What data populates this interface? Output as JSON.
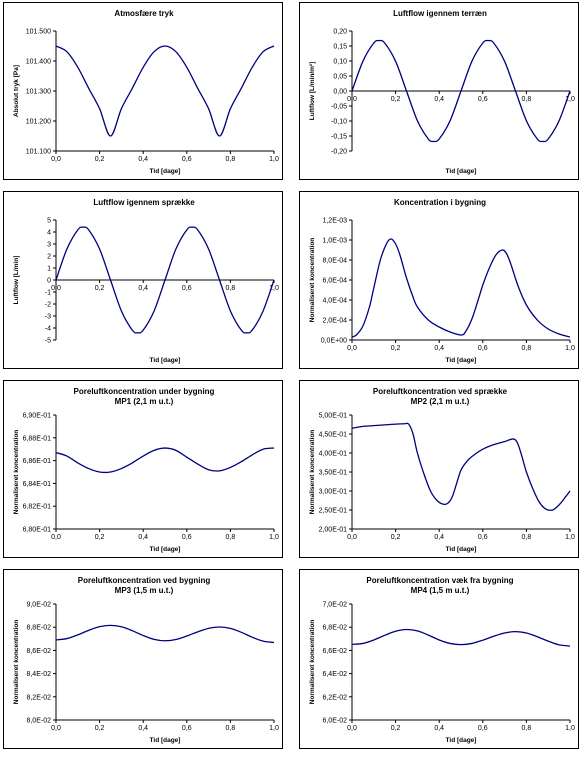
{
  "chart_data": [
    {
      "id": "p1",
      "type": "line",
      "title": "Atmosfære tryk",
      "subtitle": "",
      "xlabel": "Tid [dage]",
      "ylabel": "Absolut tryk [Pa]",
      "xlim": [
        0,
        1
      ],
      "ylim": [
        101100,
        101500
      ],
      "xticks": [
        "0,0",
        "0,2",
        "0,4",
        "0,6",
        "0,8",
        "1,0"
      ],
      "yticks": [
        "101.100",
        "101.200",
        "101.300",
        "101.400",
        "101.500"
      ],
      "xaxis_at_zero": false,
      "series": [
        {
          "color": "#000080",
          "x": [
            0,
            0.05,
            0.1,
            0.15,
            0.2,
            0.25,
            0.3,
            0.35,
            0.4,
            0.45,
            0.5,
            0.55,
            0.6,
            0.65,
            0.7,
            0.75,
            0.8,
            0.85,
            0.9,
            0.95,
            1.0
          ],
          "y": [
            101450,
            101431,
            101379,
            101309,
            101241,
            101150,
            101241,
            101309,
            101379,
            101431,
            101450,
            101431,
            101379,
            101309,
            101241,
            101150,
            101241,
            101309,
            101379,
            101431,
            101450
          ]
        }
      ]
    },
    {
      "id": "p2",
      "type": "line",
      "title": "Luftflow igennem terræn",
      "subtitle": "",
      "xlabel": "Tid [dage]",
      "ylabel": "Luftflow [L/min/m²]",
      "xlim": [
        0,
        1
      ],
      "ylim": [
        -0.2,
        0.2
      ],
      "xticks": [
        "0,0",
        "0,2",
        "0,4",
        "0,6",
        "0,8",
        "1,0"
      ],
      "yticks": [
        "-0,20",
        "-0,15",
        "-0,10",
        "-0,05",
        "0,00",
        "0,05",
        "0,10",
        "0,15",
        "0,20"
      ],
      "xaxis_at_zero": true,
      "series": [
        {
          "color": "#000080",
          "x": [
            0,
            0.05,
            0.1,
            0.125,
            0.15,
            0.2,
            0.25,
            0.3,
            0.35,
            0.375,
            0.4,
            0.45,
            0.5,
            0.55,
            0.6,
            0.625,
            0.65,
            0.7,
            0.75,
            0.8,
            0.85,
            0.875,
            0.9,
            0.95,
            1.0
          ],
          "y": [
            0,
            0.099,
            0.16,
            0.168,
            0.16,
            0.099,
            0,
            -0.099,
            -0.16,
            -0.168,
            -0.16,
            -0.099,
            0,
            0.099,
            0.16,
            0.168,
            0.16,
            0.099,
            0,
            -0.099,
            -0.16,
            -0.168,
            -0.16,
            -0.099,
            0
          ]
        }
      ]
    },
    {
      "id": "p3",
      "type": "line",
      "title": "Luftflow igennem sprække",
      "subtitle": "",
      "xlabel": "Tid [dage]",
      "ylabel": "Luftflow [L/min]",
      "xlim": [
        0,
        1
      ],
      "ylim": [
        -5,
        5
      ],
      "xticks": [
        "0,0",
        "0,2",
        "0,4",
        "0,6",
        "0,8",
        "1,0"
      ],
      "yticks": [
        "-5",
        "-4",
        "-3",
        "-2",
        "-1",
        "0",
        "1",
        "2",
        "3",
        "4",
        "5"
      ],
      "xaxis_at_zero": true,
      "series": [
        {
          "color": "#000080",
          "x": [
            0,
            0.05,
            0.1,
            0.125,
            0.15,
            0.2,
            0.25,
            0.3,
            0.35,
            0.375,
            0.4,
            0.45,
            0.5,
            0.55,
            0.6,
            0.625,
            0.65,
            0.7,
            0.75,
            0.8,
            0.85,
            0.875,
            0.9,
            0.95,
            1.0
          ],
          "y": [
            0,
            2.58,
            4.18,
            4.4,
            4.18,
            2.58,
            0,
            -2.58,
            -4.18,
            -4.4,
            -4.18,
            -2.58,
            0,
            2.58,
            4.18,
            4.4,
            4.18,
            2.58,
            0,
            -2.58,
            -4.18,
            -4.4,
            -4.18,
            -2.58,
            0
          ]
        }
      ]
    },
    {
      "id": "p4",
      "type": "line",
      "title": "Koncentration i bygning",
      "subtitle": "",
      "xlabel": "Tid [dage]",
      "ylabel": "Normaliseret koncentration",
      "xlim": [
        0,
        1
      ],
      "ylim": [
        0,
        0.0012
      ],
      "xticks": [
        "0,0",
        "0,2",
        "0,4",
        "0,6",
        "0,8",
        "1,0"
      ],
      "yticks": [
        "0,0E+00",
        "2,0E-04",
        "4,0E-04",
        "6,0E-04",
        "8,0E-04",
        "1,0E-03",
        "1,2E-03"
      ],
      "xaxis_at_zero": false,
      "series": [
        {
          "color": "#000080",
          "x": [
            0,
            0.02,
            0.05,
            0.08,
            0.1,
            0.13,
            0.16,
            0.18,
            0.2,
            0.22,
            0.25,
            0.28,
            0.3,
            0.35,
            0.4,
            0.45,
            0.5,
            0.52,
            0.55,
            0.58,
            0.6,
            0.63,
            0.66,
            0.69,
            0.71,
            0.73,
            0.76,
            0.8,
            0.85,
            0.9,
            0.95,
            1.0
          ],
          "y": [
            3e-05,
            5e-05,
            0.00014,
            0.00033,
            0.00052,
            0.0008,
            0.00097,
            0.00101,
            0.00096,
            0.00085,
            0.00062,
            0.00043,
            0.00033,
            0.0002,
            0.00013,
            8e-05,
            5e-05,
            8e-05,
            0.00021,
            0.00041,
            0.00055,
            0.00072,
            0.00085,
            0.0009,
            0.00086,
            0.00075,
            0.00055,
            0.00035,
            0.0002,
            0.00011,
            6e-05,
            3e-05
          ]
        }
      ]
    },
    {
      "id": "p5",
      "type": "line",
      "title": "Poreluftkoncentration under bygning",
      "subtitle": "MP1 (2,1 m u.t.)",
      "xlabel": "Tid [dage]",
      "ylabel": "Normaliseret koncentration",
      "xlim": [
        0,
        1
      ],
      "ylim": [
        0.68,
        0.69
      ],
      "xticks": [
        "0,0",
        "0,2",
        "0,4",
        "0,6",
        "0,8",
        "1,0"
      ],
      "yticks": [
        "6,80E-01",
        "6,82E-01",
        "6,84E-01",
        "6,86E-01",
        "6,88E-01",
        "6,90E-01"
      ],
      "xaxis_at_zero": false,
      "series": [
        {
          "color": "#000080",
          "x": [
            0,
            0.05,
            0.1,
            0.15,
            0.2,
            0.25,
            0.3,
            0.35,
            0.4,
            0.45,
            0.5,
            0.55,
            0.6,
            0.65,
            0.7,
            0.75,
            0.8,
            0.85,
            0.9,
            0.95,
            1.0
          ],
          "y": [
            0.6867,
            0.6864,
            0.6858,
            0.6853,
            0.685,
            0.685,
            0.6853,
            0.6858,
            0.6864,
            0.6869,
            0.6871,
            0.6869,
            0.6863,
            0.6857,
            0.6852,
            0.6851,
            0.6854,
            0.6859,
            0.6865,
            0.687,
            0.6871
          ]
        }
      ]
    },
    {
      "id": "p6",
      "type": "line",
      "title": "Poreluftkoncentration ved sprække",
      "subtitle": "MP2 (2,1 m u.t.)",
      "xlabel": "Tid [dage]",
      "ylabel": "Normaliseret koncentration",
      "xlim": [
        0,
        1
      ],
      "ylim": [
        0.2,
        0.5
      ],
      "xticks": [
        "0,0",
        "0,2",
        "0,4",
        "0,6",
        "0,8",
        "1,0"
      ],
      "yticks": [
        "2,00E-01",
        "2,50E-01",
        "3,00E-01",
        "3,50E-01",
        "4,00E-01",
        "4,50E-01",
        "5,00E-01"
      ],
      "xaxis_at_zero": false,
      "series": [
        {
          "color": "#000080",
          "x": [
            0,
            0.05,
            0.1,
            0.15,
            0.2,
            0.24,
            0.26,
            0.28,
            0.3,
            0.33,
            0.36,
            0.39,
            0.42,
            0.44,
            0.46,
            0.48,
            0.5,
            0.53,
            0.56,
            0.6,
            0.65,
            0.7,
            0.74,
            0.76,
            0.78,
            0.8,
            0.83,
            0.86,
            0.89,
            0.92,
            0.94,
            0.96,
            0.98,
            1.0
          ],
          "y": [
            0.465,
            0.47,
            0.472,
            0.474,
            0.476,
            0.477,
            0.476,
            0.45,
            0.4,
            0.345,
            0.3,
            0.275,
            0.265,
            0.268,
            0.285,
            0.32,
            0.355,
            0.38,
            0.395,
            0.41,
            0.422,
            0.43,
            0.437,
            0.425,
            0.39,
            0.35,
            0.305,
            0.27,
            0.252,
            0.25,
            0.258,
            0.27,
            0.285,
            0.3
          ]
        }
      ]
    },
    {
      "id": "p7",
      "type": "line",
      "title": "Poreluftkoncentration ved bygning",
      "subtitle": "MP3 (1,5 m u.t.)",
      "xlabel": "Tid [dage]",
      "ylabel": "Normaliseret koncentration",
      "xlim": [
        0,
        1
      ],
      "ylim": [
        0.08,
        0.09
      ],
      "xticks": [
        "0,0",
        "0,2",
        "0,4",
        "0,6",
        "0,8",
        "1,0"
      ],
      "yticks": [
        "8,0E-02",
        "8,2E-02",
        "8,4E-02",
        "8,6E-02",
        "8,8E-02",
        "9,0E-02"
      ],
      "xaxis_at_zero": false,
      "series": [
        {
          "color": "#000080",
          "x": [
            0,
            0.05,
            0.1,
            0.15,
            0.2,
            0.25,
            0.3,
            0.35,
            0.4,
            0.45,
            0.5,
            0.55,
            0.6,
            0.65,
            0.7,
            0.75,
            0.8,
            0.85,
            0.9,
            0.95,
            1.0
          ],
          "y": [
            0.0869,
            0.08702,
            0.08734,
            0.08773,
            0.08805,
            0.08816,
            0.08804,
            0.0877,
            0.08728,
            0.08695,
            0.08683,
            0.08694,
            0.08724,
            0.0876,
            0.0879,
            0.08802,
            0.0879,
            0.08756,
            0.08714,
            0.0868,
            0.08668
          ]
        }
      ]
    },
    {
      "id": "p8",
      "type": "line",
      "title": "Poreluftkoncentration væk fra bygning",
      "subtitle": "MP4 (1,5 m u.t.)",
      "xlabel": "Tid [dage]",
      "ylabel": "Normaliseret koncentration",
      "xlim": [
        0,
        1
      ],
      "ylim": [
        0.06,
        0.07
      ],
      "xticks": [
        "0,0",
        "0,2",
        "0,4",
        "0,6",
        "0,8",
        "1,0"
      ],
      "yticks": [
        "6,0E-02",
        "6,2E-02",
        "6,4E-02",
        "6,6E-02",
        "6,8E-02",
        "7,0E-02"
      ],
      "xaxis_at_zero": false,
      "series": [
        {
          "color": "#000080",
          "x": [
            0,
            0.05,
            0.1,
            0.15,
            0.2,
            0.25,
            0.3,
            0.35,
            0.4,
            0.45,
            0.5,
            0.55,
            0.6,
            0.65,
            0.7,
            0.75,
            0.8,
            0.85,
            0.9,
            0.95,
            1.0
          ],
          "y": [
            0.06652,
            0.0666,
            0.0669,
            0.0673,
            0.06765,
            0.0678,
            0.06768,
            0.06732,
            0.0669,
            0.0666,
            0.0665,
            0.0666,
            0.06688,
            0.06722,
            0.0675,
            0.06762,
            0.0675,
            0.06718,
            0.0668,
            0.06648,
            0.06638
          ]
        }
      ]
    }
  ]
}
